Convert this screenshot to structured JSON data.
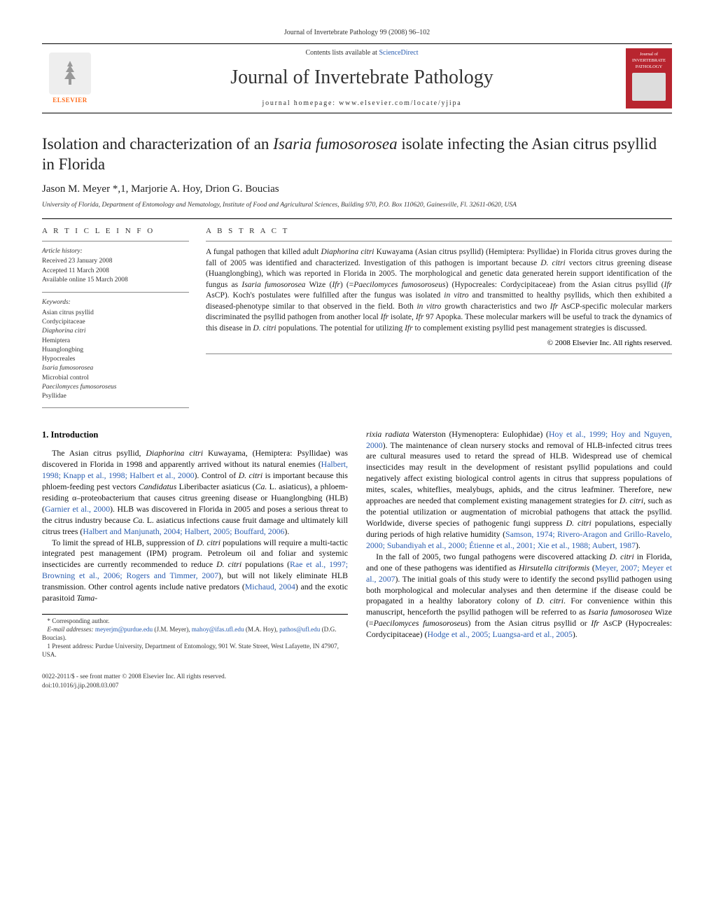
{
  "header": {
    "citation": "Journal of Invertebrate Pathology 99 (2008) 96–102",
    "contents_text": "Contents lists available at ",
    "contents_link": "ScienceDirect",
    "journal_title": "Journal of Invertebrate Pathology",
    "homepage_prefix": "journal homepage: ",
    "homepage_url": "www.elsevier.com/locate/yjipa",
    "elsevier": "ELSEVIER",
    "cover_line1": "Journal of",
    "cover_line2": "INVERTEBRATE",
    "cover_line3": "PATHOLOGY"
  },
  "article": {
    "title_html": "Isolation and characterization of an <em>Isaria fumosorosea</em> isolate infecting the Asian citrus psyllid in Florida",
    "authors": "Jason M. Meyer *,1, Marjorie A. Hoy, Drion G. Boucias",
    "affiliation": "University of Florida, Department of Entomology and Nematology, Institute of Food and Agricultural Sciences, Building 970, P.O. Box 110620, Gainesville, Fl. 32611-0620, USA"
  },
  "info": {
    "label": "A R T I C L E   I N F O",
    "history_title": "Article history:",
    "history": [
      "Received 23 January 2008",
      "Accepted 11 March 2008",
      "Available online 15 March 2008"
    ],
    "keywords_title": "Keywords:",
    "keywords": [
      "Asian citrus psyllid",
      "Cordycipitaceae",
      "Diaphorina citri",
      "Hemiptera",
      "Huanglongbing",
      "Hypocreales",
      "Isaria fumosorosea",
      "Microbial control",
      "Paecilomyces fumosoroseus",
      "Psyllidae"
    ]
  },
  "abstract": {
    "label": "A B S T R A C T",
    "text_html": "A fungal pathogen that killed adult <em>Diaphorina citri</em> Kuwayama (Asian citrus psyllid) (Hemiptera: Psyllidae) in Florida citrus groves during the fall of 2005 was identified and characterized. Investigation of this pathogen is important because <em>D. citri</em> vectors citrus greening disease (Huanglongbing), which was reported in Florida in 2005. The morphological and genetic data generated herein support identification of the fungus as <em>Isaria fumosorosea</em> Wize (<em>Ifr</em>) (=<em>Paecilomyces fumosoroseus</em>) (Hypocreales: Cordycipitaceae) from the Asian citrus psyllid (<em>Ifr</em> AsCP). Koch's postulates were fulfilled after the fungus was isolated <em>in vitro</em> and transmitted to healthy psyllids, which then exhibited a diseased-phenotype similar to that observed in the field. Both <em>in vitro</em> growth characteristics and two <em>Ifr</em> AsCP-specific molecular markers discriminated the psyllid pathogen from another local <em>Ifr</em> isolate, <em>Ifr</em> 97 Apopka. These molecular markers will be useful to track the dynamics of this disease in <em>D. citri</em> populations. The potential for utilizing <em>Ifr</em> to complement existing psyllid pest management strategies is discussed.",
    "copyright": "© 2008 Elsevier Inc. All rights reserved."
  },
  "sections": {
    "intro_heading": "1. Introduction",
    "col1_html": "<p>The Asian citrus psyllid, <em>Diaphorina citri</em> Kuwayama, (Hemiptera: Psyllidae) was discovered in Florida in 1998 and apparently arrived without its natural enemies (<a>Halbert, 1998; Knapp et al., 1998; Halbert et al., 2000</a>). Control of <em>D. citri</em> is important because this phloem-feeding pest vectors <em>Candidatus</em> Liberibacter asiaticus (<em>Ca.</em> L. asiaticus), a phloem-residing α–proteobacterium that causes citrus greening disease or Huanglongbing (HLB) (<a>Garnier et al., 2000</a>). HLB was discovered in Florida in 2005 and poses a serious threat to the citrus industry because <em>Ca.</em> L. asiaticus infections cause fruit damage and ultimately kill citrus trees (<a>Halbert and Manjunath, 2004; Halbert, 2005; Bouffard, 2006</a>).</p><p>To limit the spread of HLB, suppression of <em>D. citri</em> populations will require a multi-tactic integrated pest management (IPM) program. Petroleum oil and foliar and systemic insecticides are currently recommended to reduce <em>D. citri</em> populations (<a>Rae et al., 1997; Browning et al., 2006; Rogers and Timmer, 2007</a>), but will not likely eliminate HLB transmission. Other control agents include native predators (<a>Michaud, 2004</a>) and the exotic parasitoid <em>Tama-</em></p>",
    "col2_html": "<p style='text-indent:0'><em>rixia radiata</em> Waterston (Hymenoptera: Eulophidae) (<a>Hoy et al., 1999; Hoy and Nguyen, 2000</a>). The maintenance of clean nursery stocks and removal of HLB-infected citrus trees are cultural measures used to retard the spread of HLB. Widespread use of chemical insecticides may result in the development of resistant psyllid populations and could negatively affect existing biological control agents in citrus that suppress populations of mites, scales, whiteflies, mealybugs, aphids, and the citrus leafminer. Therefore, new approaches are needed that complement existing management strategies for <em>D. citri</em>, such as the potential utilization or augmentation of microbial pathogens that attack the psyllid. Worldwide, diverse species of pathogenic fungi suppress <em>D. citri</em> populations, especially during periods of high relative humidity (<a>Samson, 1974; Rivero-Aragon and Grillo-Ravelo, 2000; Subandiyah et al., 2000; Étienne et al., 2001; Xie et al., 1988; Aubert, 1987</a>).</p><p>In the fall of 2005, two fungal pathogens were discovered attacking <em>D. citri</em> in Florida, and one of these pathogens was identified as <em>Hirsutella citriformis</em> (<a>Meyer, 2007; Meyer et al., 2007</a>). The initial goals of this study were to identify the second psyllid pathogen using both morphological and molecular analyses and then determine if the disease could be propagated in a healthy laboratory colony of <em>D. citri</em>. For convenience within this manuscript, henceforth the psyllid pathogen will be referred to as <em>Isaria fumosorosea</em> Wize (=<em>Paecilomyces fumosoroseus</em>) from the Asian citrus psyllid or <em>Ifr</em> AsCP (Hypocreales: Cordycipitaceae) (<a>Hodge et al., 2005; Luangsa-ard et al., 2005</a>).</p>"
  },
  "footnotes": {
    "corr": "* Corresponding author.",
    "emails_html": "<em>E-mail addresses:</em> <a>meyerjm@purdue.edu</a> (J.M. Meyer), <a>mahoy@ifas.ufl.edu</a> (M.A. Hoy), <a>pathos@ufl.edu</a> (D.G. Boucias).",
    "present": "1 Present address: Purdue University, Department of Entomology, 901 W. State Street, West Lafayette, IN 47907, USA."
  },
  "footer": {
    "line1": "0022-2011/$ - see front matter © 2008 Elsevier Inc. All rights reserved.",
    "line2": "doi:10.1016/j.jip.2008.03.007"
  }
}
